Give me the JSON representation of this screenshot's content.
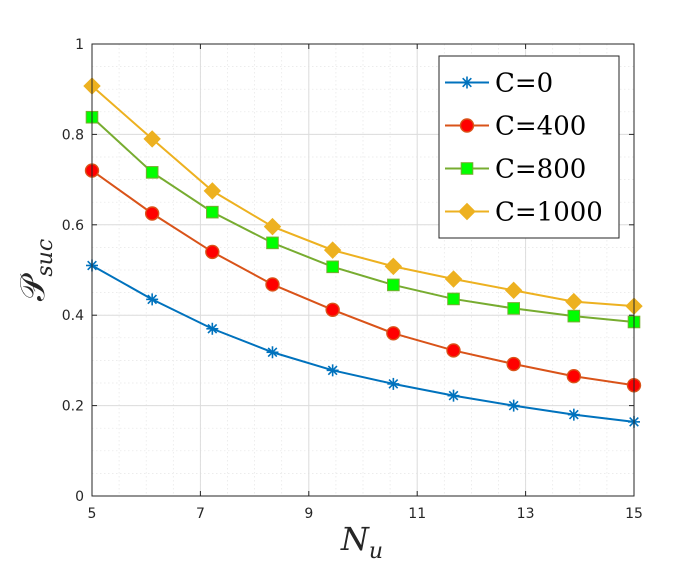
{
  "chart_data": {
    "type": "line",
    "title": "",
    "xlabel": {
      "main": "N",
      "sub": "u"
    },
    "ylabel": {
      "main": "𝒫",
      "sub": "suc"
    },
    "xlim": [
      5,
      15
    ],
    "ylim": [
      0,
      1
    ],
    "x_ticks": [
      5,
      7,
      9,
      11,
      13,
      15
    ],
    "x_tick_labels": [
      "5",
      "7",
      "9",
      "11",
      "13",
      "15"
    ],
    "y_ticks": [
      0,
      0.2,
      0.4,
      0.6,
      0.8,
      1
    ],
    "y_tick_labels": [
      "0",
      "0.2",
      "0.4",
      "0.6",
      "0.8",
      "1"
    ],
    "grid": true,
    "minor_grid": true,
    "legend_position": "top-right",
    "x": [
      5,
      6.11,
      7.22,
      8.33,
      9.44,
      10.56,
      11.67,
      12.78,
      13.89,
      15
    ],
    "series": [
      {
        "name": "C=0",
        "color": "#0072BD",
        "marker": "asterisk",
        "values": [
          0.51,
          0.435,
          0.37,
          0.318,
          0.278,
          0.248,
          0.222,
          0.2,
          0.18,
          0.164
        ]
      },
      {
        "name": "C=400",
        "color": "#D95319",
        "marker_fill": "#FF0000",
        "marker": "circle",
        "values": [
          0.72,
          0.625,
          0.54,
          0.468,
          0.412,
          0.36,
          0.322,
          0.292,
          0.265,
          0.245
        ]
      },
      {
        "name": "C=800",
        "color": "#77AC30",
        "marker_fill": "#00FF00",
        "marker": "square",
        "values": [
          0.838,
          0.716,
          0.628,
          0.56,
          0.507,
          0.467,
          0.436,
          0.415,
          0.398,
          0.385
        ]
      },
      {
        "name": "C=1000",
        "color": "#EDB120",
        "marker_fill": "#EDB120",
        "marker": "diamond",
        "values": [
          0.907,
          0.79,
          0.675,
          0.596,
          0.544,
          0.508,
          0.48,
          0.455,
          0.43,
          0.42
        ]
      }
    ]
  }
}
